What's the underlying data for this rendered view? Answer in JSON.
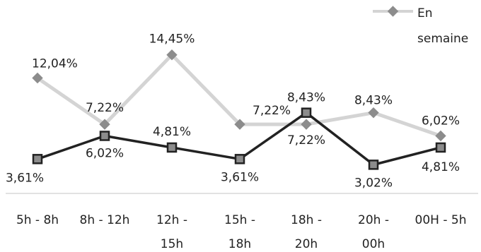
{
  "chart_data": {
    "type": "line",
    "categories": [
      "5h - 8h",
      "8h - 12h",
      "12h - 15h",
      "15h - 18h",
      "18h - 20h",
      "20h - 00h",
      "00H - 5h"
    ],
    "category_lines": [
      [
        "5h - 8h"
      ],
      [
        "8h - 12h"
      ],
      [
        "12h -",
        "15h"
      ],
      [
        "15h -",
        "18h"
      ],
      [
        "18h -",
        "20h"
      ],
      [
        "20h -",
        "00h"
      ],
      [
        "00H - 5h"
      ]
    ],
    "series": [
      {
        "name": "En semaine",
        "values": [
          12.04,
          7.22,
          14.45,
          7.22,
          7.22,
          8.43,
          6.02
        ],
        "labels": [
          "12,04%",
          "7,22%",
          "14,45%",
          "7,22%",
          "7,22%",
          "8,43%",
          "6,02%"
        ],
        "color": "#d4d4d4",
        "marker": "diamond",
        "marker_color": "#8c8c8c"
      },
      {
        "values": [
          3.61,
          6.02,
          4.81,
          3.61,
          8.43,
          3.02,
          4.81
        ],
        "labels": [
          "3,61%",
          "6,02%",
          "4,81%",
          "3,61%",
          "8,43%",
          "3,02%",
          "4,81%"
        ],
        "color": "#222222",
        "marker": "square",
        "marker_color": "#8c8c8c"
      }
    ],
    "legend": {
      "position": "top-right",
      "label_lines": [
        "En",
        "semaine"
      ]
    },
    "ylim": [
      0,
      16
    ],
    "grid": false
  }
}
